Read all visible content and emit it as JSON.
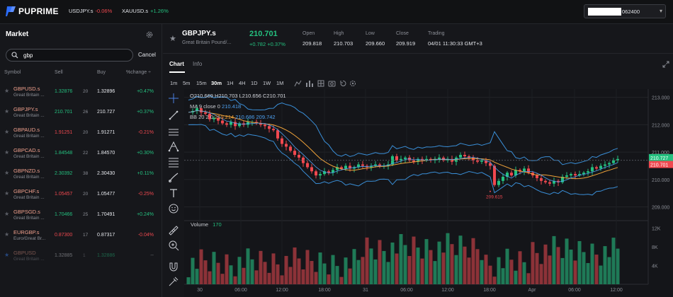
{
  "brand": {
    "name": "PUPRIME"
  },
  "top_tickers": [
    {
      "symbol": "USDJPY.s",
      "change": "-0.06%"
    },
    {
      "symbol": "XAUUSD.s",
      "change": "+1.26%"
    }
  ],
  "account": {
    "number_tail": "062400"
  },
  "market": {
    "title": "Market",
    "search": {
      "value": "gbp",
      "cancel": "Cancel"
    },
    "columns": {
      "symbol": "Symbol",
      "sell": "Sell",
      "buy": "Buy",
      "change": "%change ÷"
    },
    "rows": [
      {
        "symbol": "GBPUSD.s",
        "desc": "Great Britain ...",
        "sell": "1.32876",
        "spread": "20",
        "buy": "1.32896",
        "change": "+0.47%",
        "dir": "up"
      },
      {
        "symbol": "GBPJPY.s",
        "desc": "Great Britain ...",
        "sell": "210.701",
        "spread": "26",
        "buy": "210.727",
        "change": "+0.37%",
        "dir": "up"
      },
      {
        "symbol": "GBPAUD.s",
        "desc": "Great Britain ...",
        "sell": "1.91251",
        "spread": "20",
        "buy": "1.91271",
        "change": "-0.21%",
        "dir": "down"
      },
      {
        "symbol": "GBPCAD.s",
        "desc": "Great Britain ...",
        "sell": "1.84548",
        "spread": "22",
        "buy": "1.84570",
        "change": "+0.30%",
        "dir": "up"
      },
      {
        "symbol": "GBPNZD.s",
        "desc": "Great Britain ...",
        "sell": "2.30392",
        "spread": "38",
        "buy": "2.30430",
        "change": "+0.11%",
        "dir": "up"
      },
      {
        "symbol": "GBPCHF.s",
        "desc": "Great Britain ...",
        "sell": "1.05457",
        "spread": "20",
        "buy": "1.05477",
        "change": "-0.25%",
        "dir": "down"
      },
      {
        "symbol": "GBPSGD.s",
        "desc": "Great Britain ...",
        "sell": "1.70466",
        "spread": "25",
        "buy": "1.70491",
        "change": "+0.24%",
        "dir": "up"
      },
      {
        "symbol": "EURGBP.s",
        "desc": "Euro/Great Br...",
        "sell": "0.87300",
        "spread": "17",
        "buy": "0.87317",
        "change": "-0.04%",
        "dir": "down"
      },
      {
        "symbol": "GBPUSD",
        "desc": "Great Britain ...",
        "sell": "1.32885",
        "spread": "1",
        "buy": "1.32886",
        "change": "--",
        "dir": "none"
      }
    ]
  },
  "instrument": {
    "symbol": "GBPJPY.s",
    "name": "Great Britain Pound/...",
    "price": "210.701",
    "change": "+0.782",
    "change_pct": "+0.37%",
    "open_label": "Open",
    "open": "209.818",
    "high_label": "High",
    "high": "210.703",
    "low_label": "Low",
    "low": "209.660",
    "close_label": "Close",
    "close": "209.919",
    "trading_label": "Trading",
    "trading": "04/01 11:30:33 GMT+3"
  },
  "chart_tabs": [
    "Chart",
    "Info"
  ],
  "timeframes": [
    "1m",
    "5m",
    "15m",
    "30m",
    "1H",
    "4H",
    "1D",
    "1W",
    "1M"
  ],
  "active_timeframe": "30m",
  "ohlc_legend": "O210.669 H210.703 L210.656 C210.701",
  "ma_legend": {
    "label": "MA 9 close 0",
    "value": "210.418"
  },
  "bb_legend": {
    "label": "BB 20 2 0",
    "mid": "210.214",
    "upper": "210.686",
    "lower": "209.742"
  },
  "volume_legend": {
    "label": "Volume",
    "value": "170"
  },
  "low_marker": "209.615",
  "price_tags": {
    "ask": "210.727",
    "bid": "210.701"
  },
  "colors": {
    "up": "#24c07f",
    "down": "#f0484f",
    "bb": "#3a8fd8",
    "ma": "#f0a33a"
  },
  "chart_data": {
    "type": "candlestick",
    "price_ticks": [
      "213.000",
      "212.000",
      "211.000",
      "210.000",
      "209.000"
    ],
    "volume_ticks": [
      "12K",
      "8K",
      "4K"
    ],
    "x_ticks": [
      "30",
      "06:00",
      "12:00",
      "18:00",
      "31",
      "06:00",
      "12:00",
      "18:00",
      "Apr",
      "06:00",
      "12:00"
    ],
    "ylim": [
      208.5,
      213.3
    ],
    "vol_max": 13000
  }
}
